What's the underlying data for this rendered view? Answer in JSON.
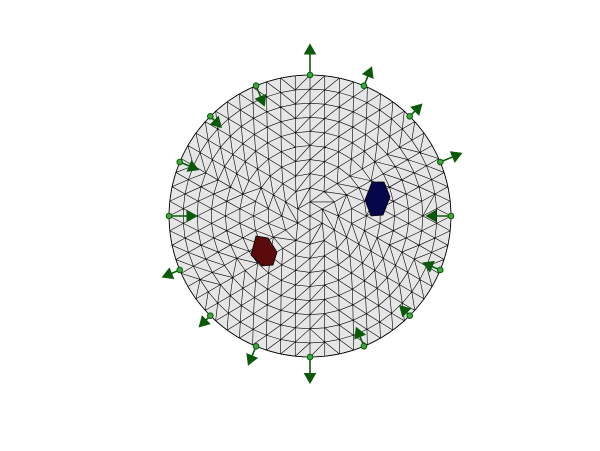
{
  "figure": {
    "mesh": {
      "fill_color": "#e6e6e6",
      "edge_color": "#000000",
      "rings": 10
    },
    "inclusions": [
      {
        "name": "positive-inclusion",
        "color": "#5a0a0a"
      },
      {
        "name": "negative-inclusion",
        "color": "#06064a"
      }
    ],
    "electrodes": {
      "count": 16,
      "color": "#0b5a0b",
      "arrows": [
        {
          "direction": "outward",
          "length": 1.0
        },
        {
          "direction": "outward",
          "length": 0.65
        },
        {
          "direction": "outward",
          "length": 0.55
        },
        {
          "direction": "outward",
          "length": 0.75
        },
        {
          "direction": "inward",
          "length": 0.8
        },
        {
          "direction": "inward",
          "length": 0.6
        },
        {
          "direction": "inward",
          "length": 0.45
        },
        {
          "direction": "inward",
          "length": 0.65
        },
        {
          "direction": "outward",
          "length": 0.85
        },
        {
          "direction": "outward",
          "length": 0.65
        },
        {
          "direction": "outward",
          "length": 0.5
        },
        {
          "direction": "outward",
          "length": 0.6
        },
        {
          "direction": "inward",
          "length": 0.9
        },
        {
          "direction": "inward",
          "length": 0.65
        },
        {
          "direction": "inward",
          "length": 0.5
        },
        {
          "direction": "inward",
          "length": 0.7
        }
      ]
    }
  }
}
